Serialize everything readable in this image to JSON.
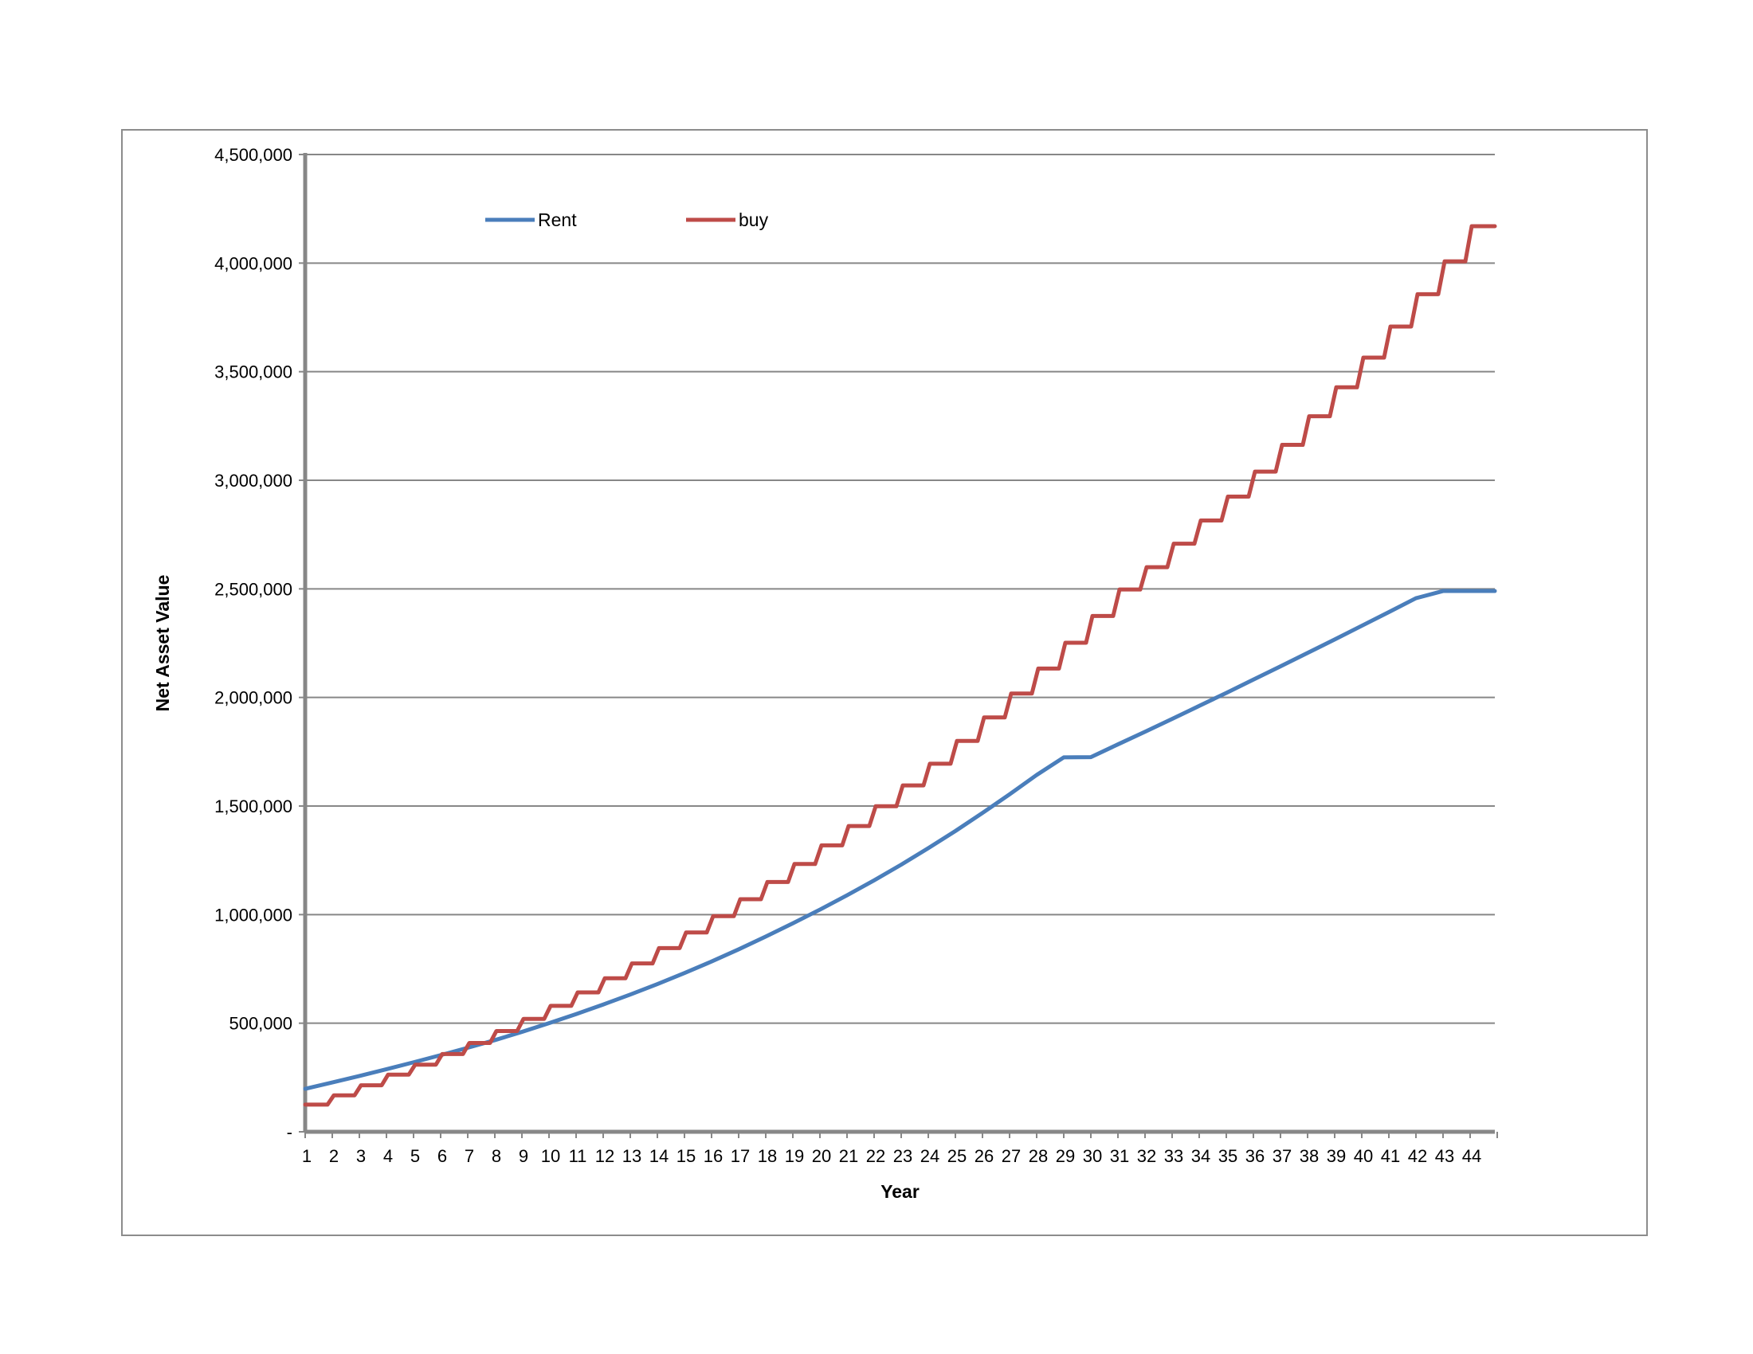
{
  "chart_data": {
    "type": "line",
    "title": "",
    "xlabel": "Year",
    "ylabel": "Net Asset Value",
    "ylim": [
      0,
      4500000
    ],
    "ytick_labels": [
      "-",
      "500,000",
      "1,000,000",
      "1,500,000",
      "2,000,000",
      "2,500,000",
      "3,000,000",
      "3,500,000",
      "4,000,000",
      "4,500,000"
    ],
    "ytick_values": [
      0,
      500000,
      1000000,
      1500000,
      2000000,
      2500000,
      3000000,
      3500000,
      4000000,
      4500000
    ],
    "categories": [
      "1",
      "2",
      "3",
      "4",
      "5",
      "6",
      "7",
      "8",
      "9",
      "10",
      "11",
      "12",
      "13",
      "14",
      "15",
      "16",
      "17",
      "18",
      "19",
      "20",
      "21",
      "22",
      "23",
      "24",
      "25",
      "26",
      "27",
      "28",
      "29",
      "30",
      "31",
      "32",
      "33",
      "34",
      "35",
      "36",
      "37",
      "38",
      "39",
      "40",
      "41",
      "42",
      "43",
      "44"
    ],
    "grid": true,
    "legend_position": "top-left",
    "series": [
      {
        "name": "Rent",
        "color": "#4a7ebb",
        "values": [
          198000,
          227000,
          257000,
          288000,
          320000,
          353000,
          387000,
          422000,
          460000,
          500000,
          542000,
          586000,
          632000,
          680000,
          731000,
          784000,
          840000,
          899000,
          960000,
          1023000,
          1089000,
          1158000,
          1230000,
          1306000,
          1385000,
          1468000,
          1554000,
          1643000,
          1724000,
          1725000,
          1784000,
          1842000,
          1901000,
          1961000,
          2021000,
          2082000,
          2143000,
          2205000,
          2267000,
          2330000,
          2393000,
          2457000,
          2490000,
          2490000
        ]
      },
      {
        "name": "buy",
        "color": "#be4b48",
        "values": [
          125000,
          168000,
          214000,
          263000,
          309000,
          358000,
          409000,
          464000,
          520000,
          580000,
          642000,
          707000,
          775000,
          846000,
          918000,
          993000,
          1071000,
          1150000,
          1233000,
          1319000,
          1408000,
          1499000,
          1595000,
          1695000,
          1800000,
          1908000,
          2018000,
          2133000,
          2252000,
          2375000,
          2497000,
          2600000,
          2708000,
          2815000,
          2925000,
          3040000,
          3163000,
          3295000,
          3428000,
          3565000,
          3708000,
          3857000,
          4008000,
          4170000
        ]
      }
    ]
  }
}
